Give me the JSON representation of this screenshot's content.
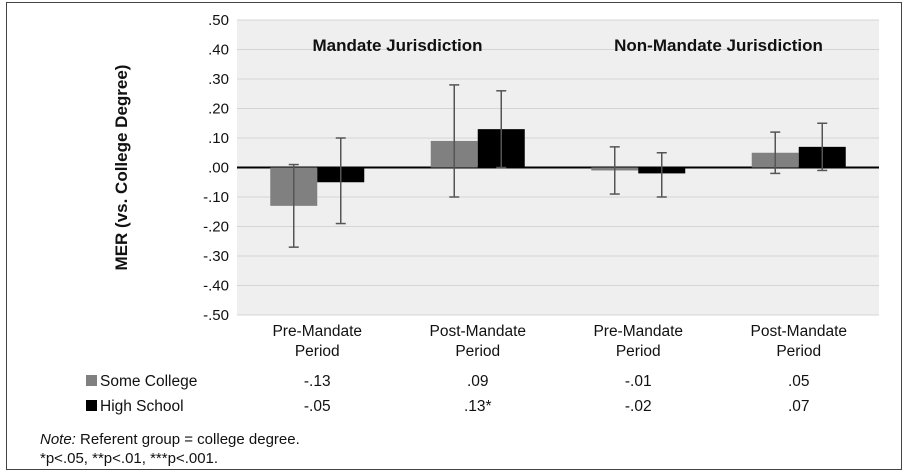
{
  "chart_data": {
    "type": "bar",
    "ylabel": "MER (vs. College Degree)",
    "ylim": [
      -0.5,
      0.5
    ],
    "yticks": [
      0.5,
      0.4,
      0.3,
      0.2,
      0.1,
      0.0,
      -0.1,
      -0.2,
      -0.3,
      -0.4,
      -0.5
    ],
    "ytick_labels": [
      ".50",
      ".40",
      ".30",
      ".20",
      ".10",
      ".00",
      "-.10",
      "-.20",
      "-.30",
      "-.40",
      "-.50"
    ],
    "group_titles": [
      "Mandate Jurisdiction",
      "Non-Mandate Jurisdiction"
    ],
    "categories": [
      [
        "Pre-Mandate",
        "Period"
      ],
      [
        "Post-Mandate",
        "Period"
      ],
      [
        "Pre-Mandate",
        "Period"
      ],
      [
        "Post-Mandate",
        "Period"
      ]
    ],
    "series": [
      {
        "name": "Some College",
        "color": "#808080",
        "values": [
          -0.13,
          0.09,
          -0.01,
          0.05
        ],
        "err_low": [
          -0.27,
          -0.1,
          -0.09,
          -0.02
        ],
        "err_high": [
          0.01,
          0.28,
          0.07,
          0.12
        ],
        "labels": [
          "-.13",
          ".09",
          "-.01",
          ".05"
        ]
      },
      {
        "name": "High School",
        "color": "#000000",
        "values": [
          -0.05,
          0.13,
          -0.02,
          0.07
        ],
        "err_low": [
          -0.19,
          0.0,
          -0.1,
          -0.01
        ],
        "err_high": [
          0.1,
          0.26,
          0.05,
          0.15
        ],
        "labels": [
          "-.05",
          ".13*",
          "-.02",
          ".07"
        ]
      }
    ],
    "grid": true,
    "legend": "table-left"
  },
  "note": {
    "label": "Note:",
    "text": " Referent group = college degree.",
    "sig": "*p<.05, **p<.01, ***p<.001."
  }
}
